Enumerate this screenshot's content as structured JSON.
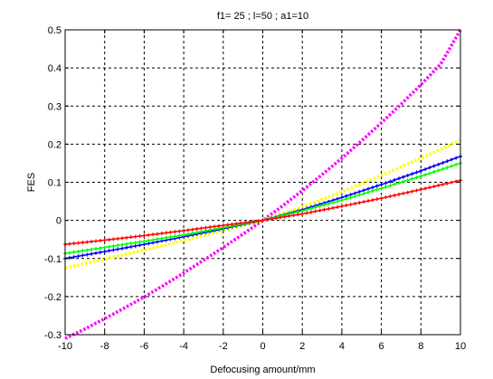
{
  "chart_data": {
    "type": "line",
    "title": "f1= 25 ; l=50 ;  a1=10",
    "xlabel": "Defocusing amount/mm",
    "ylabel": "FES",
    "xlim": [
      -10,
      10
    ],
    "ylim": [
      -0.3,
      0.5
    ],
    "x_ticks": [
      -10,
      -8,
      -6,
      -4,
      -2,
      0,
      2,
      4,
      6,
      8,
      10
    ],
    "y_ticks": [
      -0.3,
      -0.2,
      -0.1,
      0,
      0.1,
      0.2,
      0.3,
      0.4,
      0.5
    ],
    "x_tick_labels": [
      "-10",
      "-8",
      "-6",
      "-4",
      "-2",
      "0",
      "2",
      "4",
      "6",
      "8",
      "10"
    ],
    "y_tick_labels": [
      "-0.3",
      "-0.2",
      "-0.1",
      "0",
      "0.1",
      "0.2",
      "0.3",
      "0.4",
      "0.5"
    ],
    "grid": true,
    "grid_style": "dashed",
    "legend": "none",
    "series": [
      {
        "color": "#ff00ff",
        "marker": "dotted-dense",
        "x": [
          -10,
          -9,
          -8,
          -7,
          -6,
          -5,
          -4,
          -3,
          -2,
          -1,
          0,
          1,
          2,
          3,
          4,
          5,
          6,
          7,
          8,
          9,
          10
        ],
        "values": [
          -0.31,
          -0.285,
          -0.258,
          -0.23,
          -0.201,
          -0.17,
          -0.138,
          -0.105,
          -0.071,
          -0.036,
          0,
          0.038,
          0.078,
          0.12,
          0.163,
          0.209,
          0.256,
          0.305,
          0.356,
          0.41,
          0.5
        ]
      },
      {
        "color": "#ffff00",
        "marker": "dotted-dense",
        "x": [
          -10,
          -8,
          -6,
          -4,
          -2,
          0,
          2,
          4,
          6,
          8,
          10
        ],
        "values": [
          -0.125,
          -0.102,
          -0.078,
          -0.053,
          -0.027,
          0,
          0.035,
          0.075,
          0.118,
          0.163,
          0.21
        ]
      },
      {
        "color": "#0000ff",
        "marker": "plus",
        "x": [
          -10,
          -8,
          -6,
          -4,
          -2,
          0,
          2,
          4,
          6,
          8,
          10
        ],
        "values": [
          -0.1,
          -0.082,
          -0.063,
          -0.043,
          -0.022,
          0,
          0.028,
          0.06,
          0.094,
          0.13,
          0.168
        ]
      },
      {
        "color": "#00ff00",
        "marker": "plus",
        "x": [
          -10,
          -8,
          -6,
          -4,
          -2,
          0,
          2,
          4,
          6,
          8,
          10
        ],
        "values": [
          -0.087,
          -0.071,
          -0.055,
          -0.038,
          -0.019,
          0,
          0.025,
          0.053,
          0.084,
          0.116,
          0.15
        ]
      },
      {
        "color": "#ff0000",
        "marker": "plus",
        "x": [
          -10,
          -8,
          -6,
          -4,
          -2,
          0,
          2,
          4,
          6,
          8,
          10
        ],
        "values": [
          -0.063,
          -0.052,
          -0.04,
          -0.027,
          -0.013,
          0,
          0.017,
          0.037,
          0.058,
          0.081,
          0.105
        ]
      }
    ]
  }
}
